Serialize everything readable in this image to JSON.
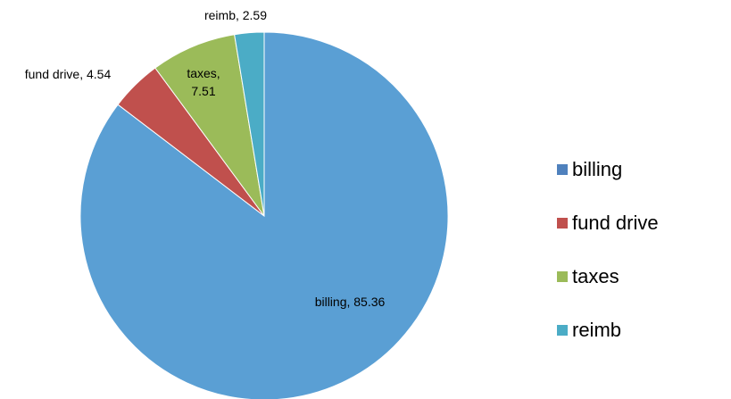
{
  "chart_data": {
    "type": "pie",
    "categories": [
      "billing",
      "fund drive",
      "taxes",
      "reimb"
    ],
    "values": [
      85.36,
      4.54,
      7.51,
      2.59
    ],
    "slice_colors": [
      "#5a9fd4",
      "#c0504d",
      "#9bbb59",
      "#4bacc6"
    ],
    "legend_colors": [
      "#4f81bd",
      "#c0504d",
      "#9bbb59",
      "#4bacc6"
    ],
    "data_labels": [
      [
        "billing, 85.36"
      ],
      [
        "fund drive, 4.54"
      ],
      [
        "taxes,",
        "7.51"
      ],
      [
        "reimb, 2.59"
      ]
    ],
    "legend": [
      "billing",
      "fund drive",
      "taxes",
      "reimb"
    ],
    "legend_position": "right",
    "start_angle": "top (12 o'clock), clockwise"
  }
}
